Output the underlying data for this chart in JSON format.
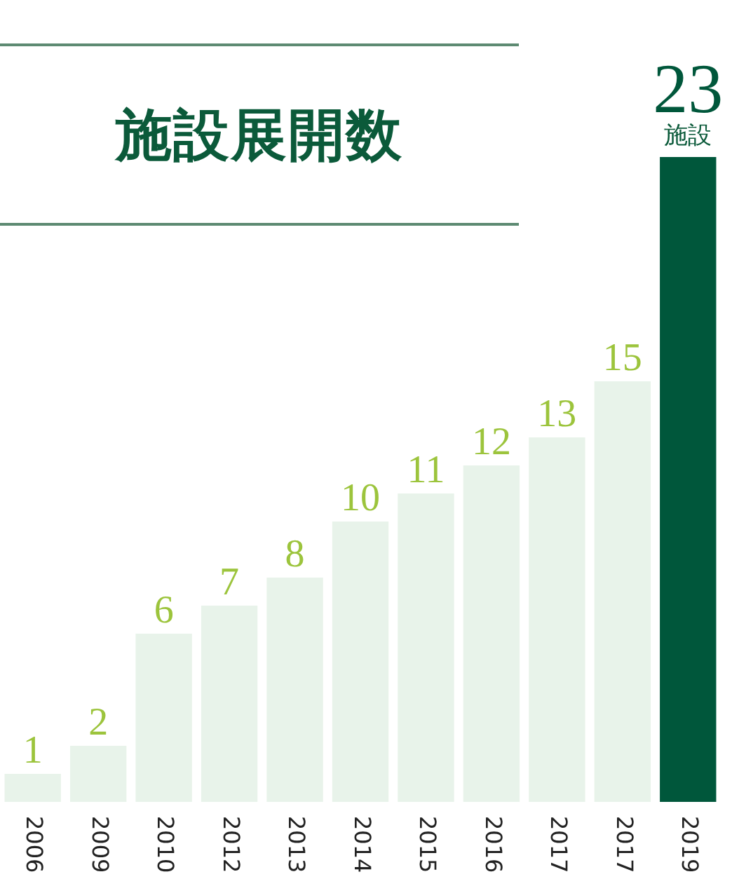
{
  "chart_data": {
    "type": "bar",
    "title": "施設展開数",
    "categories": [
      "2006",
      "2009",
      "2010",
      "2012",
      "2013",
      "2014",
      "2015",
      "2016",
      "2017",
      "2017",
      "2019"
    ],
    "values": [
      1,
      2,
      6,
      7,
      8,
      10,
      11,
      12,
      13,
      15,
      23
    ],
    "colors": [
      "#e8f3ea",
      "#e8f3ea",
      "#e8f3ea",
      "#e8f3ea",
      "#e8f3ea",
      "#e8f3ea",
      "#e8f3ea",
      "#e8f3ea",
      "#e8f3ea",
      "#e8f3ea",
      "#00573b"
    ],
    "data_labels": true,
    "tick_labels": "x",
    "grid": false,
    "legend": false,
    "annotations": [
      {
        "text": "施設",
        "x": "2019",
        "y": 23
      }
    ]
  }
}
